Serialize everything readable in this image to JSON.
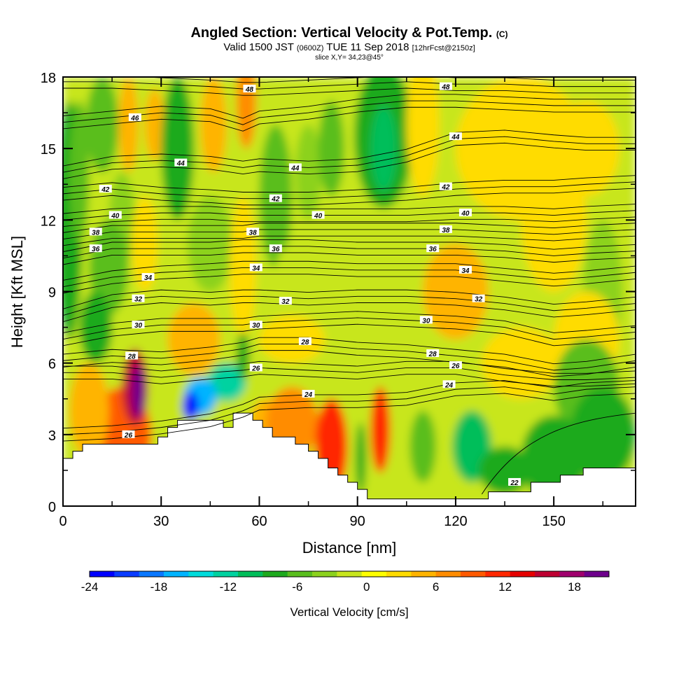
{
  "header": {
    "title": "Angled Section: Vertical Velocity & Pot.Temp.",
    "title_unit": "(C)",
    "subtitle_valid": "Valid 1500 JST",
    "subtitle_utc": "(0600Z)",
    "subtitle_date": "TUE 11 Sep 2018",
    "subtitle_fcst": "[12hrFcst@2150z]",
    "slice": "slice X,Y= 34,23@45°"
  },
  "chart_data": {
    "type": "heatmap",
    "title": "Angled Section: Vertical Velocity & Pot.Temp.",
    "xlabel": "Distance [nm]",
    "ylabel": "Height [Kft MSL]",
    "xlim": [
      0,
      175
    ],
    "ylim": [
      0,
      18
    ],
    "x_ticks": [
      "0",
      "30",
      "60",
      "90",
      "120",
      "150"
    ],
    "y_ticks": [
      "0",
      "3",
      "6",
      "9",
      "12",
      "15",
      "18"
    ],
    "colorbar": {
      "label": "Vertical Velocity [cm/s]",
      "range": [
        -24,
        21
      ],
      "tick_labels": [
        "-24",
        "-18",
        "-12",
        "-6",
        "0",
        "6",
        "12",
        "18"
      ],
      "colors": [
        "#0000ff",
        "#0a3cff",
        "#0a78ff",
        "#00b4ff",
        "#00dcdc",
        "#00d2a0",
        "#00be5a",
        "#1eaa1e",
        "#5abe1e",
        "#8cd21e",
        "#c8e61e",
        "#ffff00",
        "#ffdc00",
        "#ffb400",
        "#ff8c00",
        "#ff5a00",
        "#ff2800",
        "#e60000",
        "#be0032",
        "#a0006e",
        "#6e008c"
      ]
    },
    "theta_contours": [
      {
        "value": 22,
        "label": "22"
      },
      {
        "value": 24,
        "label": "24"
      },
      {
        "value": 26,
        "label": "26"
      },
      {
        "value": 28,
        "label": "28"
      },
      {
        "value": 30,
        "label": "30"
      },
      {
        "value": 32,
        "label": "32"
      },
      {
        "value": 34,
        "label": "34"
      },
      {
        "value": 36,
        "label": "36"
      },
      {
        "value": 38,
        "label": "38"
      },
      {
        "value": 40,
        "label": "40"
      },
      {
        "value": 42,
        "label": "42"
      },
      {
        "value": 44,
        "label": "44"
      },
      {
        "value": 46,
        "label": "46"
      },
      {
        "value": 48,
        "label": "48"
      }
    ],
    "contour_label_positions": [
      {
        "text": "48",
        "x": 57,
        "y": 17.5
      },
      {
        "text": "48",
        "x": 117,
        "y": 17.6
      },
      {
        "text": "46",
        "x": 22,
        "y": 16.3
      },
      {
        "text": "44",
        "x": 120,
        "y": 15.5
      },
      {
        "text": "44",
        "x": 36,
        "y": 14.4
      },
      {
        "text": "44",
        "x": 71,
        "y": 14.2
      },
      {
        "text": "42",
        "x": 13,
        "y": 13.3
      },
      {
        "text": "42",
        "x": 65,
        "y": 12.9
      },
      {
        "text": "42",
        "x": 117,
        "y": 13.4
      },
      {
        "text": "40",
        "x": 16,
        "y": 12.2
      },
      {
        "text": "40",
        "x": 78,
        "y": 12.2
      },
      {
        "text": "40",
        "x": 123,
        "y": 12.3
      },
      {
        "text": "38",
        "x": 10,
        "y": 11.5
      },
      {
        "text": "38",
        "x": 58,
        "y": 11.5
      },
      {
        "text": "38",
        "x": 117,
        "y": 11.6
      },
      {
        "text": "36",
        "x": 10,
        "y": 10.8
      },
      {
        "text": "36",
        "x": 65,
        "y": 10.8
      },
      {
        "text": "36",
        "x": 113,
        "y": 10.8
      },
      {
        "text": "34",
        "x": 26,
        "y": 9.6
      },
      {
        "text": "34",
        "x": 59,
        "y": 10.0
      },
      {
        "text": "34",
        "x": 123,
        "y": 9.9
      },
      {
        "text": "32",
        "x": 23,
        "y": 8.7
      },
      {
        "text": "32",
        "x": 68,
        "y": 8.6
      },
      {
        "text": "32",
        "x": 127,
        "y": 8.7
      },
      {
        "text": "30",
        "x": 23,
        "y": 7.6
      },
      {
        "text": "30",
        "x": 59,
        "y": 7.6
      },
      {
        "text": "30",
        "x": 111,
        "y": 7.8
      },
      {
        "text": "28",
        "x": 21,
        "y": 6.3
      },
      {
        "text": "28",
        "x": 74,
        "y": 6.9
      },
      {
        "text": "28",
        "x": 113,
        "y": 6.4
      },
      {
        "text": "26",
        "x": 59,
        "y": 5.8
      },
      {
        "text": "26",
        "x": 120,
        "y": 5.9
      },
      {
        "text": "26",
        "x": 20,
        "y": 3.0
      },
      {
        "text": "24",
        "x": 75,
        "y": 4.7
      },
      {
        "text": "24",
        "x": 118,
        "y": 5.1
      },
      {
        "text": "22",
        "x": 138,
        "y": 1.0
      }
    ],
    "terrain_profile": [
      [
        0,
        2.0
      ],
      [
        3,
        2.0
      ],
      [
        3,
        2.3
      ],
      [
        6,
        2.3
      ],
      [
        6,
        2.6
      ],
      [
        29,
        2.6
      ],
      [
        29,
        2.9
      ],
      [
        32,
        2.9
      ],
      [
        32,
        3.3
      ],
      [
        35,
        3.3
      ],
      [
        35,
        3.6
      ],
      [
        49,
        3.6
      ],
      [
        49,
        3.3
      ],
      [
        52,
        3.3
      ],
      [
        52,
        3.9
      ],
      [
        58,
        3.9
      ],
      [
        58,
        3.6
      ],
      [
        61,
        3.6
      ],
      [
        61,
        3.3
      ],
      [
        64,
        3.3
      ],
      [
        64,
        2.9
      ],
      [
        71,
        2.9
      ],
      [
        71,
        2.6
      ],
      [
        75,
        2.6
      ],
      [
        75,
        2.3
      ],
      [
        78,
        2.3
      ],
      [
        78,
        2.0
      ],
      [
        81,
        2.0
      ],
      [
        81,
        1.6
      ],
      [
        84,
        1.6
      ],
      [
        84,
        1.3
      ],
      [
        87,
        1.3
      ],
      [
        87,
        1.0
      ],
      [
        90,
        1.0
      ],
      [
        90,
        0.7
      ],
      [
        93,
        0.7
      ],
      [
        93,
        0.3
      ],
      [
        130,
        0.3
      ],
      [
        130,
        0.6
      ],
      [
        143,
        0.6
      ],
      [
        143,
        1.0
      ],
      [
        152,
        1.0
      ],
      [
        152,
        1.3
      ],
      [
        159,
        1.3
      ],
      [
        159,
        1.6
      ],
      [
        175,
        1.6
      ]
    ],
    "vertical_velocity_features": [
      {
        "x": 23,
        "y": 4.8,
        "value": 20,
        "description": "updraft core"
      },
      {
        "x": 40,
        "y": 4.2,
        "value": -24,
        "description": "downdraft core"
      },
      {
        "x": 98,
        "y": 15.0,
        "value": -9,
        "description": "upper downdraft"
      },
      {
        "x": 97,
        "y": 3.2,
        "value": 12,
        "description": "low-level updraft"
      },
      {
        "x": 83,
        "y": 2.5,
        "value": 12,
        "description": "low-level updraft"
      }
    ]
  }
}
